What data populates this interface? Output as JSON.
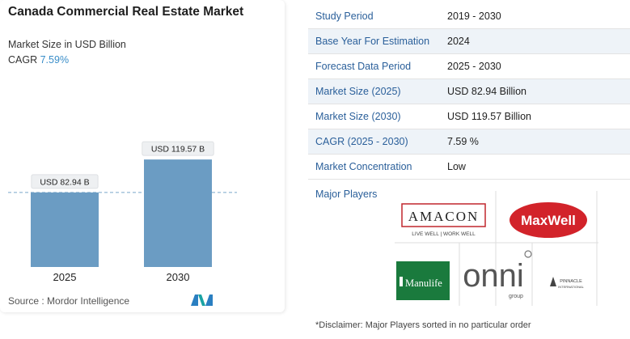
{
  "chart_data": {
    "type": "bar",
    "title": "Canada Commercial Real Estate Market",
    "subtitle": "Market Size in USD Billion",
    "cagr_label": "CAGR",
    "cagr_value": "7.59%",
    "categories": [
      "2025",
      "2030"
    ],
    "values": [
      82.94,
      119.57
    ],
    "data_labels": [
      "USD 82.94 B",
      "USD 119.57 B"
    ],
    "xlabel": "",
    "ylabel": "",
    "ylim": [
      0,
      135
    ],
    "reference_line_value": 82.94,
    "grid": false,
    "bar_color": "#6b9cc3"
  },
  "source": "Source :  Mordor Intelligence",
  "table": [
    {
      "key": "Study Period",
      "value": "2019 - 2030"
    },
    {
      "key": "Base Year For Estimation",
      "value": "2024"
    },
    {
      "key": "Forecast Data Period",
      "value": "2025 - 2030"
    },
    {
      "key": "Market Size (2025)",
      "value": "USD 82.94 Billion"
    },
    {
      "key": "Market Size (2030)",
      "value": "USD 119.57 Billion"
    },
    {
      "key": "CAGR (2025 - 2030)",
      "value": "7.59 %"
    },
    {
      "key": "Market Concentration",
      "value": "Low"
    }
  ],
  "players_label": "Major Players",
  "players": {
    "amacon": {
      "name": "AMACON",
      "tagline": "LIVE WELL  |  WORK WELL"
    },
    "maxwell": {
      "name": "MaxWell"
    },
    "manulife": {
      "name": "Manulife"
    },
    "onni": {
      "name": "onni",
      "sub": "group"
    },
    "pinnacle": {
      "name": "PINNACLE",
      "sub": "INTERNATIONAL"
    }
  },
  "disclaimer": "*Disclaimer: Major Players sorted in no particular order"
}
